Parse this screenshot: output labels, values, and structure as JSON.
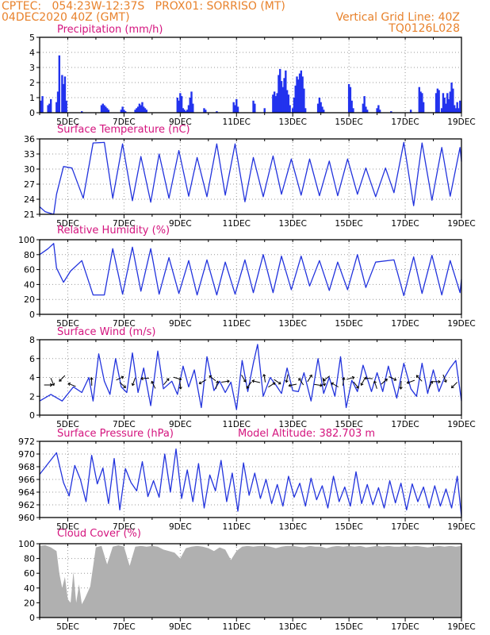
{
  "header": {
    "left_line1": "CPTEC:   054:23W-12:37S   PROX01: SORRISO (MT)",
    "left_line2": "04DEC2020 40Z (GMT)",
    "right_line1": "Vertical Grid Line: 40Z",
    "right_line2": "TQ0126L028"
  },
  "colors": {
    "header": "#e8822c",
    "title": "#d4147e",
    "series": "#2233dd",
    "bar": "#2233ee",
    "cloud": "#b0b0b0",
    "grid": "#999999"
  },
  "x_ticks": [
    "5DEC",
    "7DEC",
    "9DEC",
    "11DEC",
    "13DEC",
    "15DEC",
    "17DEC",
    "19DEC"
  ],
  "chart_data": [
    {
      "id": "precip",
      "type": "bar",
      "title": "Precipitation (mm/h)",
      "ylim": [
        0,
        5
      ],
      "yticks": [
        0,
        1,
        2,
        3,
        4,
        5
      ],
      "x_range_days": [
        4.0,
        19.0
      ],
      "x": [
        4.05,
        4.1,
        4.3,
        4.35,
        4.4,
        4.6,
        4.65,
        4.7,
        4.8,
        4.85,
        4.9,
        4.95,
        5.5,
        6.2,
        6.25,
        6.3,
        6.35,
        6.4,
        6.45,
        6.9,
        6.95,
        7.0,
        7.05,
        7.4,
        7.45,
        7.5,
        7.55,
        7.6,
        7.65,
        7.7,
        7.75,
        7.8,
        8.9,
        8.95,
        9.0,
        9.05,
        9.1,
        9.15,
        9.2,
        9.25,
        9.3,
        9.35,
        9.4,
        9.45,
        9.85,
        9.9,
        10.3,
        10.9,
        10.95,
        11.0,
        11.05,
        11.6,
        11.65,
        12.0,
        12.3,
        12.35,
        12.4,
        12.45,
        12.5,
        12.55,
        12.6,
        12.65,
        12.7,
        12.75,
        12.8,
        12.85,
        12.9,
        13.0,
        13.05,
        13.1,
        13.15,
        13.2,
        13.25,
        13.3,
        13.35,
        13.4,
        13.45,
        13.9,
        13.95,
        14.0,
        14.05,
        14.1,
        15.0,
        15.05,
        15.1,
        15.15,
        15.5,
        15.55,
        15.6,
        15.65,
        16.0,
        16.05,
        16.1,
        16.5,
        17.2,
        17.5,
        17.55,
        17.6,
        17.65,
        18.1,
        18.15,
        18.2,
        18.3,
        18.35,
        18.4,
        18.45,
        18.5,
        18.55,
        18.6,
        18.65,
        18.7,
        18.75,
        18.8,
        18.85,
        18.9,
        18.95
      ],
      "values": [
        0.8,
        1.1,
        0.5,
        0.6,
        0.9,
        0.7,
        1.4,
        3.8,
        2.5,
        1.9,
        2.4,
        0.8,
        0.1,
        0.5,
        0.6,
        0.5,
        0.4,
        0.3,
        0.2,
        0.2,
        0.4,
        0.2,
        0.1,
        0.2,
        0.3,
        0.4,
        0.6,
        0.5,
        0.7,
        0.4,
        0.3,
        0.2,
        1.0,
        0.8,
        1.3,
        1.1,
        0.3,
        0.2,
        0.1,
        0.2,
        0.5,
        1.0,
        1.4,
        0.6,
        0.3,
        0.2,
        0.1,
        0.7,
        0.5,
        0.9,
        0.4,
        0.8,
        0.6,
        0.3,
        1.2,
        1.4,
        1.1,
        1.3,
        2.5,
        2.9,
        2.1,
        1.7,
        2.3,
        2.8,
        1.5,
        1.2,
        0.5,
        0.3,
        1.0,
        1.8,
        2.4,
        2.2,
        2.6,
        2.8,
        2.4,
        1.6,
        0.3,
        0.6,
        1.0,
        0.7,
        0.4,
        0.2,
        1.9,
        1.7,
        0.8,
        0.3,
        0.6,
        1.1,
        0.4,
        0.2,
        0.3,
        0.5,
        0.2,
        0.1,
        0.2,
        1.7,
        1.4,
        1.3,
        0.7,
        1.3,
        1.6,
        1.5,
        0.3,
        1.3,
        1.0,
        0.6,
        1.3,
        0.9,
        1.4,
        2.0,
        1.6,
        0.5,
        0.3,
        0.7,
        0.3,
        0.8
      ]
    },
    {
      "id": "temp",
      "type": "line",
      "title": "Surface Temperature (nC)",
      "ylim": [
        21,
        36
      ],
      "yticks": [
        21,
        24,
        27,
        30,
        33,
        36
      ],
      "x_range_days": [
        4.0,
        19.0
      ],
      "x": [
        4.0,
        4.2,
        4.5,
        4.6,
        4.85,
        5.15,
        5.55,
        5.9,
        6.3,
        6.6,
        6.95,
        7.3,
        7.6,
        7.95,
        8.25,
        8.6,
        8.95,
        9.3,
        9.6,
        9.95,
        10.3,
        10.6,
        10.95,
        11.3,
        11.6,
        11.95,
        12.3,
        12.6,
        12.95,
        13.3,
        13.6,
        13.95,
        14.3,
        14.6,
        14.95,
        15.3,
        15.6,
        15.95,
        16.3,
        16.6,
        16.95,
        17.3,
        17.6,
        17.95,
        18.3,
        18.6,
        18.95,
        19.0
      ],
      "values": [
        22.5,
        21.5,
        21.0,
        25.0,
        30.5,
        30.2,
        24.2,
        35.2,
        35.3,
        24.2,
        35.0,
        23.7,
        32.5,
        23.4,
        33.0,
        24.2,
        33.7,
        24.6,
        32.3,
        24.5,
        35.0,
        24.8,
        35.0,
        23.5,
        32.3,
        24.5,
        32.6,
        25.0,
        32.0,
        24.8,
        32.0,
        24.7,
        31.6,
        24.7,
        32.0,
        25.0,
        30.2,
        24.5,
        30.2,
        25.3,
        35.3,
        22.7,
        35.2,
        23.8,
        34.3,
        24.6,
        34.3,
        31.5
      ]
    },
    {
      "id": "rh",
      "type": "line",
      "title": "Relative Humidity (%)",
      "ylim": [
        0,
        100
      ],
      "yticks": [
        0,
        20,
        40,
        60,
        80,
        100
      ],
      "x_range_days": [
        4.0,
        19.0
      ],
      "x": [
        4.0,
        4.3,
        4.5,
        4.6,
        4.85,
        5.1,
        5.5,
        5.9,
        6.3,
        6.6,
        6.95,
        7.3,
        7.6,
        7.95,
        8.25,
        8.6,
        8.95,
        9.3,
        9.6,
        9.95,
        10.3,
        10.6,
        10.95,
        11.3,
        11.6,
        11.95,
        12.3,
        12.6,
        12.95,
        13.3,
        13.6,
        13.95,
        14.3,
        14.6,
        14.95,
        15.3,
        15.6,
        15.95,
        16.6,
        16.95,
        17.3,
        17.6,
        17.95,
        18.3,
        18.6,
        18.95,
        19.0
      ],
      "values": [
        80,
        88,
        95,
        62,
        43,
        58,
        72,
        26,
        26,
        88,
        27,
        90,
        31,
        88,
        27,
        76,
        28,
        72,
        26,
        73,
        26,
        70,
        27,
        73,
        29,
        80,
        29,
        78,
        33,
        78,
        38,
        72,
        32,
        70,
        33,
        80,
        36,
        70,
        73,
        25,
        77,
        28,
        79,
        26,
        72,
        29,
        47
      ]
    },
    {
      "id": "wind",
      "type": "line",
      "title": "Surface Wind (m/s)",
      "ylim": [
        0,
        8
      ],
      "yticks": [
        0,
        2,
        4,
        6,
        8
      ],
      "x_range_days": [
        4.0,
        19.0
      ],
      "x": [
        4.0,
        4.4,
        4.8,
        5.2,
        5.5,
        5.75,
        5.9,
        6.1,
        6.3,
        6.5,
        6.7,
        6.9,
        7.1,
        7.3,
        7.5,
        7.7,
        7.95,
        8.2,
        8.4,
        8.7,
        8.9,
        9.1,
        9.3,
        9.5,
        9.75,
        9.95,
        10.2,
        10.4,
        10.6,
        10.8,
        11.0,
        11.2,
        11.4,
        11.6,
        11.75,
        11.95,
        12.2,
        12.4,
        12.6,
        12.8,
        13.0,
        13.2,
        13.4,
        13.65,
        13.9,
        14.1,
        14.3,
        14.5,
        14.7,
        14.9,
        15.1,
        15.3,
        15.5,
        15.8,
        16.0,
        16.2,
        16.4,
        16.7,
        16.95,
        17.2,
        17.4,
        17.6,
        17.8,
        18.0,
        18.2,
        18.4,
        18.6,
        18.8,
        19.0
      ],
      "values": [
        1.5,
        2.2,
        1.5,
        3.0,
        2.4,
        4.0,
        1.5,
        6.5,
        3.6,
        2.2,
        6.0,
        3.0,
        2.4,
        6.6,
        2.4,
        5.0,
        1.0,
        6.8,
        2.8,
        3.6,
        2.2,
        5.2,
        3.0,
        4.8,
        0.8,
        6.2,
        2.6,
        3.6,
        2.4,
        3.5,
        0.6,
        5.8,
        2.5,
        5.5,
        7.5,
        2.0,
        4.0,
        3.2,
        2.3,
        5.0,
        2.6,
        2.5,
        4.5,
        1.5,
        6.0,
        2.3,
        4.0,
        2.0,
        6.2,
        0.8,
        3.7,
        2.5,
        5.3,
        2.5,
        4.5,
        2.5,
        5.2,
        1.8,
        5.5,
        2.8,
        2.0,
        5.5,
        2.3,
        4.8,
        2.5,
        4.0,
        5.0,
        5.8,
        1.5
      ],
      "arrows_days": [
        4.3,
        4.45,
        4.8,
        5.15,
        5.85,
        6.85,
        6.95,
        7.35,
        7.75,
        8.05,
        8.5,
        8.9,
        9.0,
        9.8,
        10.15,
        10.3,
        10.6,
        11.25,
        11.45,
        11.7,
        12.0,
        12.25,
        12.45,
        12.8,
        13.0,
        13.3,
        13.6,
        13.9,
        14.1,
        14.2,
        14.5,
        14.8,
        15.05,
        15.25,
        15.5,
        15.7,
        15.95,
        16.25,
        16.55,
        16.85,
        17.2,
        17.5,
        17.9,
        18.1,
        18.4,
        18.75
      ]
    },
    {
      "id": "press",
      "type": "line",
      "title": "Surface Pressure (hPa)",
      "subtitle": "Model Altitude: 382.703 m",
      "ylim": [
        960,
        972
      ],
      "yticks": [
        960,
        962,
        964,
        966,
        968,
        970,
        972
      ],
      "x_range_days": [
        4.0,
        19.0
      ],
      "x": [
        4.0,
        4.3,
        4.6,
        4.85,
        5.05,
        5.25,
        5.45,
        5.65,
        5.85,
        6.05,
        6.25,
        6.45,
        6.65,
        6.85,
        7.05,
        7.25,
        7.45,
        7.65,
        7.85,
        8.05,
        8.25,
        8.45,
        8.65,
        8.85,
        9.05,
        9.25,
        9.45,
        9.65,
        9.85,
        10.05,
        10.25,
        10.45,
        10.65,
        10.85,
        11.05,
        11.25,
        11.45,
        11.65,
        11.85,
        12.05,
        12.25,
        12.45,
        12.65,
        12.85,
        13.05,
        13.25,
        13.45,
        13.65,
        13.85,
        14.05,
        14.25,
        14.45,
        14.65,
        14.85,
        15.05,
        15.25,
        15.45,
        15.65,
        15.85,
        16.05,
        16.25,
        16.45,
        16.65,
        16.85,
        17.05,
        17.25,
        17.45,
        17.65,
        17.85,
        18.05,
        18.25,
        18.45,
        18.65,
        18.85,
        19.0
      ],
      "values": [
        966.8,
        968.5,
        970.2,
        965.5,
        963.4,
        968.2,
        966.0,
        962.5,
        969.8,
        965.3,
        967.8,
        962.2,
        969.3,
        961.2,
        967.7,
        965.5,
        964.2,
        968.8,
        963.3,
        965.8,
        963.2,
        970.0,
        964.0,
        970.8,
        963.0,
        967.5,
        962.5,
        968.5,
        961.5,
        966.7,
        964.2,
        969.0,
        962.5,
        967.0,
        961.0,
        968.6,
        963.5,
        967.0,
        963.0,
        966.0,
        962.2,
        965.2,
        961.8,
        966.5,
        963.2,
        965.4,
        961.8,
        966.2,
        962.8,
        965.0,
        961.5,
        966.5,
        962.5,
        964.8,
        961.8,
        967.2,
        962.2,
        965.2,
        962.0,
        964.7,
        961.5,
        965.8,
        962.3,
        965.4,
        961.2,
        965.3,
        962.5,
        964.8,
        961.5,
        965.0,
        961.8,
        964.5,
        961.5,
        966.5,
        960.2
      ]
    },
    {
      "id": "cloud",
      "type": "area",
      "title": "Cloud Cover (%)",
      "ylim": [
        0,
        100
      ],
      "yticks": [
        0,
        20,
        40,
        60,
        80,
        100
      ],
      "x_range_days": [
        4.0,
        19.0
      ],
      "x": [
        4.0,
        4.2,
        4.4,
        4.6,
        4.7,
        4.8,
        4.9,
        5.0,
        5.1,
        5.2,
        5.3,
        5.4,
        5.5,
        5.6,
        5.8,
        6.0,
        6.2,
        6.4,
        6.6,
        6.8,
        7.0,
        7.2,
        7.4,
        7.6,
        7.8,
        8.0,
        8.2,
        8.4,
        8.6,
        8.8,
        9.0,
        9.2,
        9.4,
        9.6,
        9.8,
        10.0,
        10.2,
        10.4,
        10.6,
        10.8,
        11.0,
        11.2,
        11.4,
        11.6,
        11.8,
        12.0,
        12.2,
        12.4,
        12.6,
        12.8,
        13.0,
        13.2,
        13.4,
        13.6,
        13.8,
        14.0,
        14.2,
        14.4,
        14.6,
        14.8,
        15.0,
        15.2,
        15.4,
        15.6,
        15.8,
        16.0,
        16.2,
        16.4,
        16.6,
        16.8,
        17.0,
        17.2,
        17.4,
        17.6,
        17.8,
        18.0,
        18.2,
        18.4,
        18.6,
        18.8,
        19.0
      ],
      "values": [
        97,
        98,
        95,
        90,
        60,
        40,
        55,
        25,
        20,
        62,
        20,
        45,
        18,
        25,
        42,
        95,
        97,
        72,
        96,
        98,
        96,
        70,
        96,
        97,
        96,
        97,
        96,
        92,
        90,
        88,
        80,
        94,
        96,
        97,
        96,
        94,
        90,
        95,
        92,
        78,
        90,
        96,
        97,
        96,
        97,
        97,
        96,
        94,
        96,
        97,
        97,
        96,
        95,
        97,
        96,
        96,
        94,
        96,
        97,
        96,
        97,
        96,
        97,
        95,
        96,
        97,
        96,
        97,
        96,
        96,
        97,
        96,
        97,
        96,
        95,
        96,
        97,
        96,
        97,
        96,
        97
      ]
    }
  ]
}
